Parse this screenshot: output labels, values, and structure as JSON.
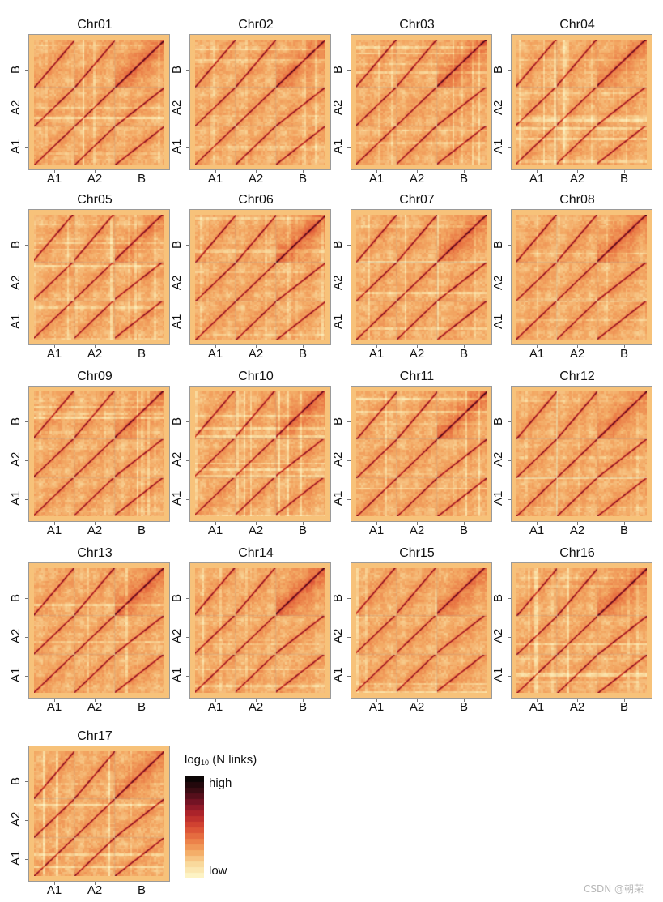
{
  "chart_data": {
    "type": "heatmap",
    "description_axes": {
      "y_ticks": [
        "A1",
        "A2",
        "B"
      ],
      "x_ticks": [
        "A1",
        "A2",
        "B"
      ]
    },
    "panels": [
      {
        "title": "Chr01",
        "b_domain_intensity": 0.55
      },
      {
        "title": "Chr02",
        "b_domain_intensity": 0.5
      },
      {
        "title": "Chr03",
        "b_domain_intensity": 0.7
      },
      {
        "title": "Chr04",
        "b_domain_intensity": 0.4
      },
      {
        "title": "Chr05",
        "b_domain_intensity": 0.3
      },
      {
        "title": "Chr06",
        "b_domain_intensity": 0.7
      },
      {
        "title": "Chr07",
        "b_domain_intensity": 0.55
      },
      {
        "title": "Chr08",
        "b_domain_intensity": 0.5
      },
      {
        "title": "Chr09",
        "b_domain_intensity": 0.4
      },
      {
        "title": "Chr10",
        "b_domain_intensity": 0.55
      },
      {
        "title": "Chr11",
        "b_domain_intensity": 0.65
      },
      {
        "title": "Chr12",
        "b_domain_intensity": 0.4
      },
      {
        "title": "Chr13",
        "b_domain_intensity": 0.6
      },
      {
        "title": "Chr14",
        "b_domain_intensity": 0.7
      },
      {
        "title": "Chr15",
        "b_domain_intensity": 0.45
      },
      {
        "title": "Chr16",
        "b_domain_intensity": 0.55
      },
      {
        "title": "Chr17",
        "b_domain_intensity": 0.4
      }
    ],
    "colorbar": {
      "title": "log",
      "title_sub": "10",
      "title_rest": " (N links)",
      "high_label": "high",
      "low_label": "low",
      "colors": [
        "#fdf3c4",
        "#f9d79a",
        "#f3a863",
        "#ea7a45",
        "#d84a33",
        "#b5262b",
        "#7a1426",
        "#3d0c14",
        "#0b0505"
      ]
    }
  },
  "watermark": "CSDN @朝荣"
}
